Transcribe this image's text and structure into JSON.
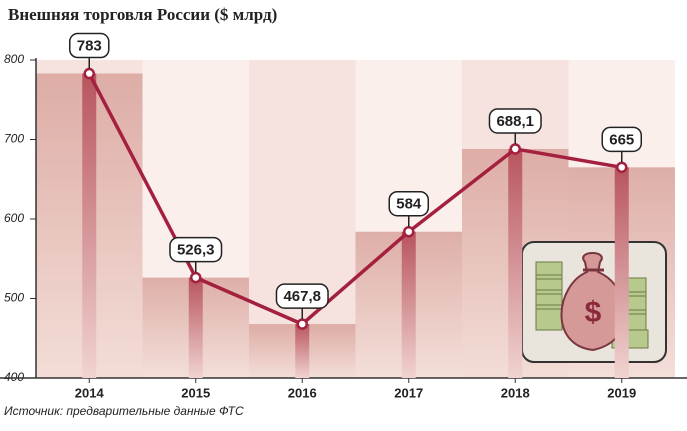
{
  "chart_data": {
    "type": "line",
    "title": "Внешняя торговля России ($ млрд)",
    "categories": [
      "2014",
      "2015",
      "2016",
      "2017",
      "2018",
      "2019"
    ],
    "values": [
      783,
      526.3,
      467.8,
      584,
      688.1,
      665
    ],
    "value_labels": [
      "783",
      "526,3",
      "467,8",
      "584",
      "688,1",
      "665"
    ],
    "color": "#a3213f",
    "ylim": [
      400,
      800
    ],
    "yticks": [
      400,
      500,
      600,
      700,
      800
    ],
    "source": "Источник: предварительные данные ФТС"
  }
}
